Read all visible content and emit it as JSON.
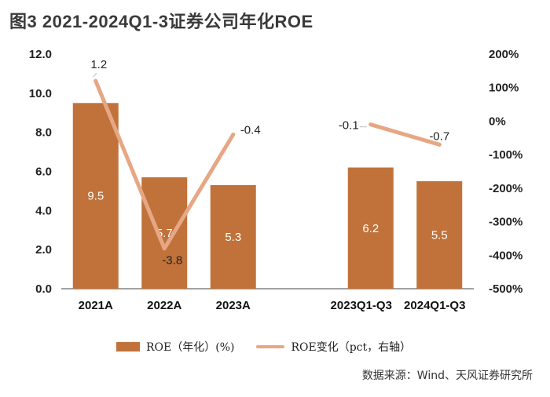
{
  "title": "图3  2021-2024Q1-3证券公司年化ROE",
  "source": "数据来源：Wind、天风证券研究所",
  "colors": {
    "bar": "#c0723a",
    "line": "#e6a784",
    "leader": "#bbbbbb"
  },
  "chart_data": {
    "type": "bar",
    "categories": [
      "2021A",
      "2022A",
      "2023A",
      "",
      "2023Q1-Q3",
      "2024Q1-Q3"
    ],
    "series": [
      {
        "name": "ROE（年化）(%)",
        "type": "bar",
        "axis": "left",
        "values": [
          9.5,
          5.7,
          5.3,
          null,
          6.2,
          5.5
        ],
        "labels": [
          "9.5",
          "5.7",
          "5.3",
          "",
          "6.2",
          "5.5"
        ]
      },
      {
        "name": "ROE变化（pct，右轴）",
        "type": "line",
        "axis": "right",
        "values": [
          1.2,
          -3.8,
          -0.4,
          null,
          -0.1,
          -0.7
        ],
        "labels": [
          "1.2",
          "-3.8",
          "-0.4",
          "",
          "-0.1",
          "-0.7"
        ]
      }
    ],
    "y_left": {
      "min": 0,
      "max": 12,
      "ticks": [
        "0.0",
        "2.0",
        "4.0",
        "6.0",
        "8.0",
        "10.0",
        "12.0"
      ]
    },
    "y_right": {
      "min": -5,
      "max": 2,
      "ticks": [
        "-500%",
        "-400%",
        "-300%",
        "-200%",
        "-100%",
        "0%",
        "100%",
        "200%"
      ]
    },
    "legend_position": "bottom"
  }
}
